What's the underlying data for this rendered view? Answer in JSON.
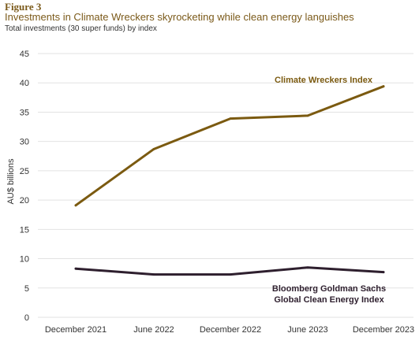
{
  "figure_label": "Figure 3",
  "title": "Investments in Climate Wreckers skyrocketing while clean energy languishes",
  "subtitle": "Total investments (30 super funds) by index",
  "chart_data": {
    "type": "line",
    "categories": [
      "December 2021",
      "June 2022",
      "December 2022",
      "June 2023",
      "December 2023"
    ],
    "ylabel": "AU$ billions",
    "xlabel": "",
    "ylim": [
      0,
      45
    ],
    "yticks": [
      0,
      5,
      10,
      15,
      20,
      25,
      30,
      35,
      40,
      45
    ],
    "grid": "horizontal",
    "series": [
      {
        "name": "Climate Wreckers Index",
        "values": [
          19.1,
          28.7,
          33.9,
          34.4,
          39.4
        ],
        "color": "#7b5a10",
        "label_lines": [
          "Climate Wreckers Index"
        ]
      },
      {
        "name": "Bloomberg Goldman Sachs Global Clean Energy Index",
        "values": [
          8.3,
          7.3,
          7.3,
          8.5,
          7.7
        ],
        "color": "#2e1f2e",
        "label_lines": [
          "Bloomberg Goldman Sachs",
          "Global Clean Energy Index"
        ]
      }
    ]
  }
}
